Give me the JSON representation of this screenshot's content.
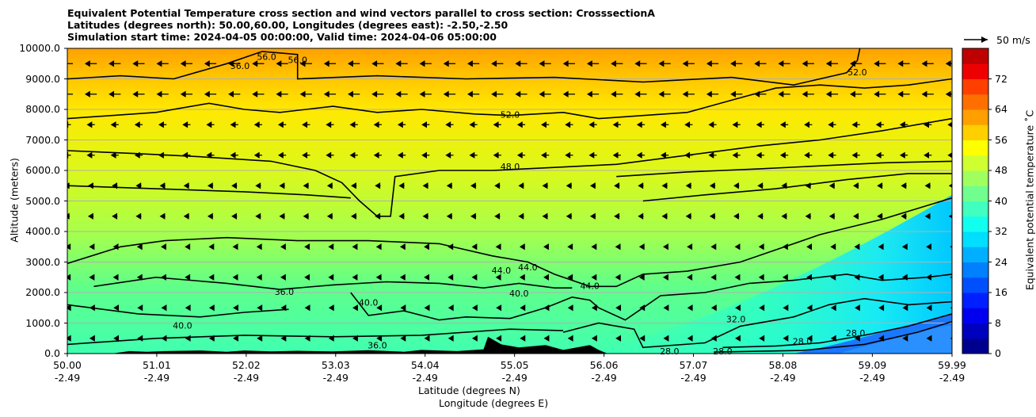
{
  "chart_data": {
    "type": "contour",
    "title_lines": [
      "Equivalent Potential Temperature cross section and wind vectors parallel to cross section: CrosssectionA",
      "Latitudes (degrees north): 50.00,60.00, Longitudes (degrees east): -2.50,-2.50",
      "Simulation start time: 2024-04-05 00:00:00, Valid time: 2024-04-06 05:00:00"
    ],
    "xlabel_lat": "Latitude (degrees N)",
    "xlabel_lon": "Longitude (degrees E)",
    "ylabel": "Altitude (meters)",
    "xlim": [
      50.0,
      59.99
    ],
    "ylim": [
      0,
      10000
    ],
    "x_ticks": [
      {
        "lat": "50.00",
        "lon": "-2.49",
        "v": 50.0
      },
      {
        "lat": "51.01",
        "lon": "-2.49",
        "v": 51.01
      },
      {
        "lat": "52.02",
        "lon": "-2.49",
        "v": 52.02
      },
      {
        "lat": "53.03",
        "lon": "-2.49",
        "v": 53.03
      },
      {
        "lat": "54.04",
        "lon": "-2.49",
        "v": 54.04
      },
      {
        "lat": "55.05",
        "lon": "-2.49",
        "v": 55.05
      },
      {
        "lat": "56.06",
        "lon": "-2.49",
        "v": 56.06
      },
      {
        "lat": "57.07",
        "lon": "-2.49",
        "v": 57.07
      },
      {
        "lat": "58.08",
        "lon": "-2.49",
        "v": 58.08
      },
      {
        "lat": "59.09",
        "lon": "-2.49",
        "v": 59.09
      },
      {
        "lat": "59.99",
        "lon": "-2.49",
        "v": 59.99
      }
    ],
    "y_ticks": [
      "0.0",
      "1000.0",
      "2000.0",
      "3000.0",
      "4000.0",
      "5000.0",
      "6000.0",
      "7000.0",
      "8000.0",
      "9000.0",
      "10000.0"
    ],
    "y_tick_values": [
      0,
      1000,
      2000,
      3000,
      4000,
      5000,
      6000,
      7000,
      8000,
      9000,
      10000
    ],
    "grid": true,
    "colorbar": {
      "label": "Equivalent potential temperature ˚C",
      "min": 0,
      "max": 80,
      "ticks": [
        "0",
        "8",
        "16",
        "24",
        "32",
        "40",
        "48",
        "56",
        "64",
        "72"
      ],
      "tick_values": [
        0,
        8,
        16,
        24,
        32,
        40,
        48,
        56,
        64,
        72
      ]
    },
    "wind_key": {
      "label": "50 m/s",
      "speed": 50
    },
    "contour_levels": [
      28,
      32,
      36,
      40,
      44,
      48,
      52,
      56
    ],
    "contour_labels": [
      {
        "text": "56.0",
        "x": 51.95,
        "y": 9400
      },
      {
        "text": "56.0",
        "x": 52.25,
        "y": 9700
      },
      {
        "text": "56.0",
        "x": 52.6,
        "y": 9600
      },
      {
        "text": "52.0",
        "x": 55.0,
        "y": 7800
      },
      {
        "text": "48.0",
        "x": 55.0,
        "y": 6100
      },
      {
        "text": "44.0",
        "x": 54.9,
        "y": 2700
      },
      {
        "text": "44.0",
        "x": 55.2,
        "y": 2800
      },
      {
        "text": "44.0",
        "x": 55.9,
        "y": 2200
      },
      {
        "text": "40.0",
        "x": 55.1,
        "y": 1950
      },
      {
        "text": "40.0",
        "x": 53.4,
        "y": 1650
      },
      {
        "text": "40.0",
        "x": 51.3,
        "y": 900
      },
      {
        "text": "36.0",
        "x": 52.45,
        "y": 2000
      },
      {
        "text": "36.0",
        "x": 53.5,
        "y": 250
      },
      {
        "text": "32.0",
        "x": 57.55,
        "y": 1100
      },
      {
        "text": "28.0",
        "x": 58.3,
        "y": 380
      },
      {
        "text": "28.0",
        "x": 58.9,
        "y": 650
      },
      {
        "text": "28.0",
        "x": 56.8,
        "y": 50
      },
      {
        "text": "28.0",
        "x": 57.4,
        "y": 50
      },
      {
        "text": "52.0",
        "x": 58.92,
        "y": 9200
      }
    ]
  }
}
